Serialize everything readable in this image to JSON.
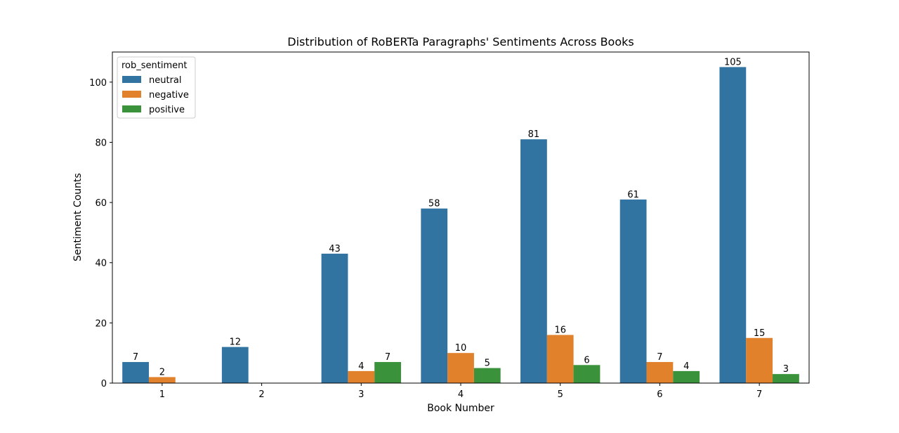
{
  "chart_data": {
    "type": "bar",
    "title": "Distribution of RoBERTa Paragraphs' Sentiments Across Books",
    "xlabel": "Book Number",
    "ylabel": "Sentiment Counts",
    "categories": [
      "1",
      "2",
      "3",
      "4",
      "5",
      "6",
      "7"
    ],
    "ylim": [
      0,
      110
    ],
    "yticks": [
      0,
      20,
      40,
      60,
      80,
      100
    ],
    "grid": false,
    "legend": {
      "title": "rob_sentiment",
      "placement": "top-left"
    },
    "series": [
      {
        "name": "neutral",
        "color": "#3274a1",
        "values": [
          7,
          12,
          43,
          58,
          81,
          61,
          105
        ]
      },
      {
        "name": "negative",
        "color": "#e1812c",
        "values": [
          2,
          null,
          4,
          10,
          16,
          7,
          15
        ]
      },
      {
        "name": "positive",
        "color": "#3a923a",
        "values": [
          null,
          null,
          7,
          5,
          6,
          4,
          3
        ]
      }
    ]
  }
}
